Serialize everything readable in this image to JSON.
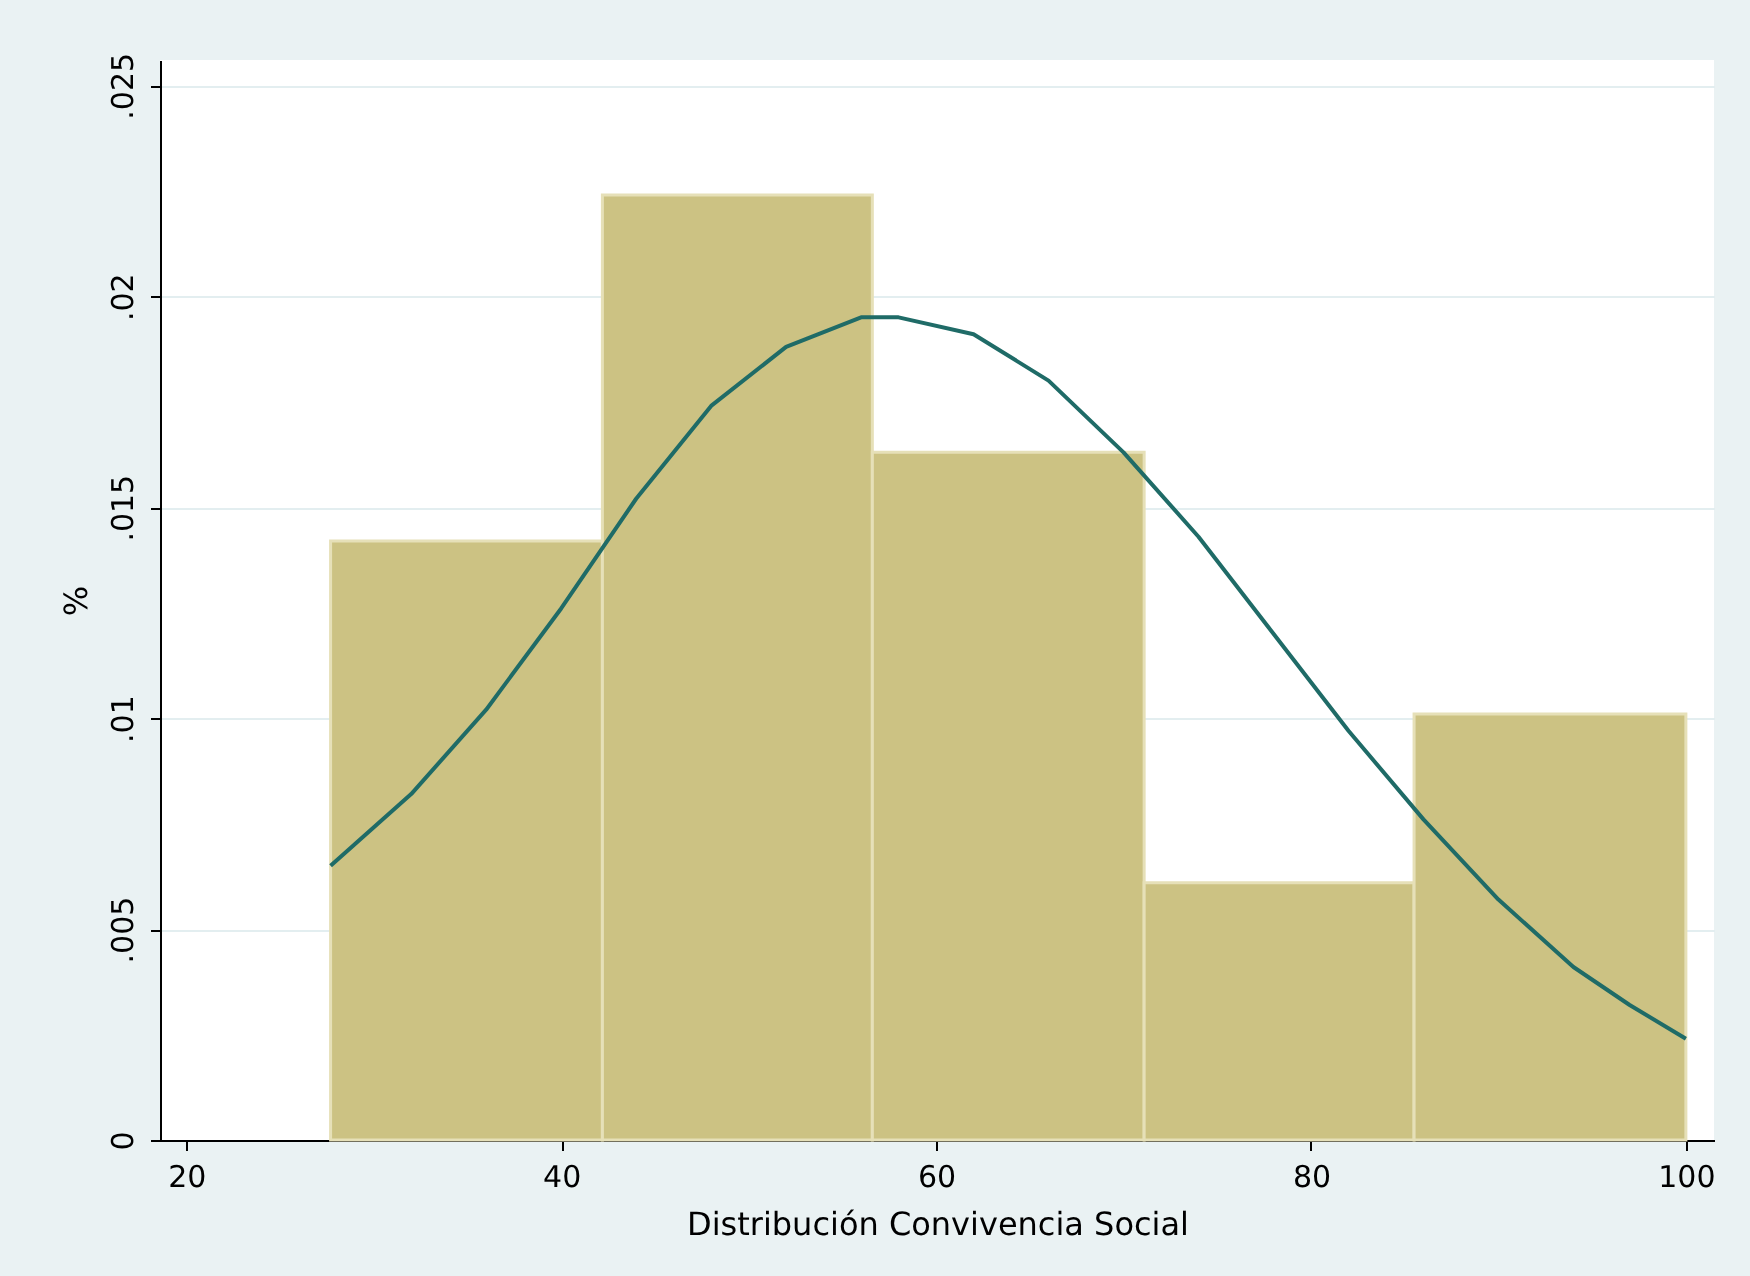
{
  "chart_data": {
    "type": "histogram",
    "xlabel": "Distribución Convivencia Social",
    "ylabel": "%",
    "bins": [
      27.7,
      42.2,
      56.6,
      71.1,
      85.5,
      100
    ],
    "values": [
      0.0142,
      0.0224,
      0.0163,
      0.0061,
      0.0101
    ],
    "color": "#ccc283",
    "series": [
      {
        "type": "line",
        "color": "#1f6b67",
        "x": [
          27.7,
          32,
          36,
          40,
          44,
          48,
          52,
          56,
          58,
          62,
          66,
          70,
          74,
          78,
          82,
          86,
          90,
          94,
          97,
          100
        ],
        "values": [
          0.0065,
          0.0082,
          0.0102,
          0.0126,
          0.0152,
          0.0174,
          0.0188,
          0.0195,
          0.0195,
          0.0191,
          0.018,
          0.0163,
          0.0143,
          0.012,
          0.0097,
          0.0076,
          0.0057,
          0.0041,
          0.0032,
          0.0024
        ]
      }
    ],
    "xlim": [
      18.6,
      101.5
    ],
    "xticks": [
      20,
      40,
      60,
      80,
      100
    ],
    "ylim": [
      0,
      0.0256
    ],
    "yticks": [
      0,
      {
        "value": 0.005,
        "label": ".005"
      },
      {
        "value": 0.01,
        "label": ".01"
      },
      {
        "value": 0.015,
        "label": ".015"
      },
      {
        "value": 0.02,
        "label": ".02"
      },
      {
        "value": 0.025,
        "label": ".025"
      }
    ],
    "grid": "y"
  }
}
